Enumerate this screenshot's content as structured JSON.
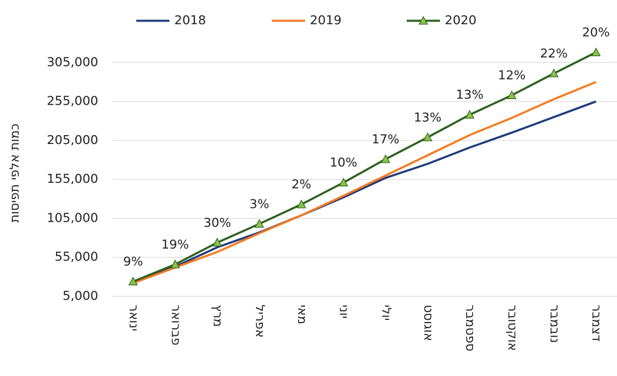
{
  "chart_data": {
    "type": "line",
    "y_axis_label": "כמות אלפי תפיסות",
    "categories": [
      "ינואר",
      "פברואר",
      "מרץ",
      "אפריל",
      "מאי",
      "יוני",
      "יולי",
      "אוגוסט",
      "ספטמבר",
      "אוקטובר",
      "נובמבר",
      "דצמבר"
    ],
    "series": [
      {
        "name": "2018",
        "color": "#1f3a7a",
        "values": [
          24000,
          43000,
          68000,
          87000,
          109000,
          132000,
          157000,
          175000,
          196000,
          215000,
          235000,
          255000
        ]
      },
      {
        "name": "2019",
        "color": "#f47b20",
        "values": [
          22000,
          42000,
          62000,
          86000,
          109000,
          134000,
          160000,
          186000,
          212000,
          234000,
          258000,
          280000
        ]
      },
      {
        "name": "2020",
        "color": "#2e5f1e",
        "marker_color": "#8bc34a",
        "values": [
          24000,
          46000,
          74000,
          98000,
          123000,
          151000,
          181000,
          209000,
          238000,
          263000,
          291000,
          318000
        ],
        "data_labels": [
          "9%",
          "19%",
          "30%",
          "3%",
          "2%",
          "10%",
          "17%",
          "13%",
          "13%",
          "12%",
          "22%",
          "20%"
        ]
      }
    ],
    "ylim": [
      5000,
      355000
    ],
    "yticks": [
      {
        "value": 5000,
        "label": "5,000"
      },
      {
        "value": 55000,
        "label": "55,000"
      },
      {
        "value": 105000,
        "label": "105,000"
      },
      {
        "value": 155000,
        "label": "155,000"
      },
      {
        "value": 205000,
        "label": "205,000"
      },
      {
        "value": 255000,
        "label": "255,000"
      },
      {
        "value": 305000,
        "label": "305,000"
      }
    ],
    "grid": true,
    "legend": "top"
  }
}
